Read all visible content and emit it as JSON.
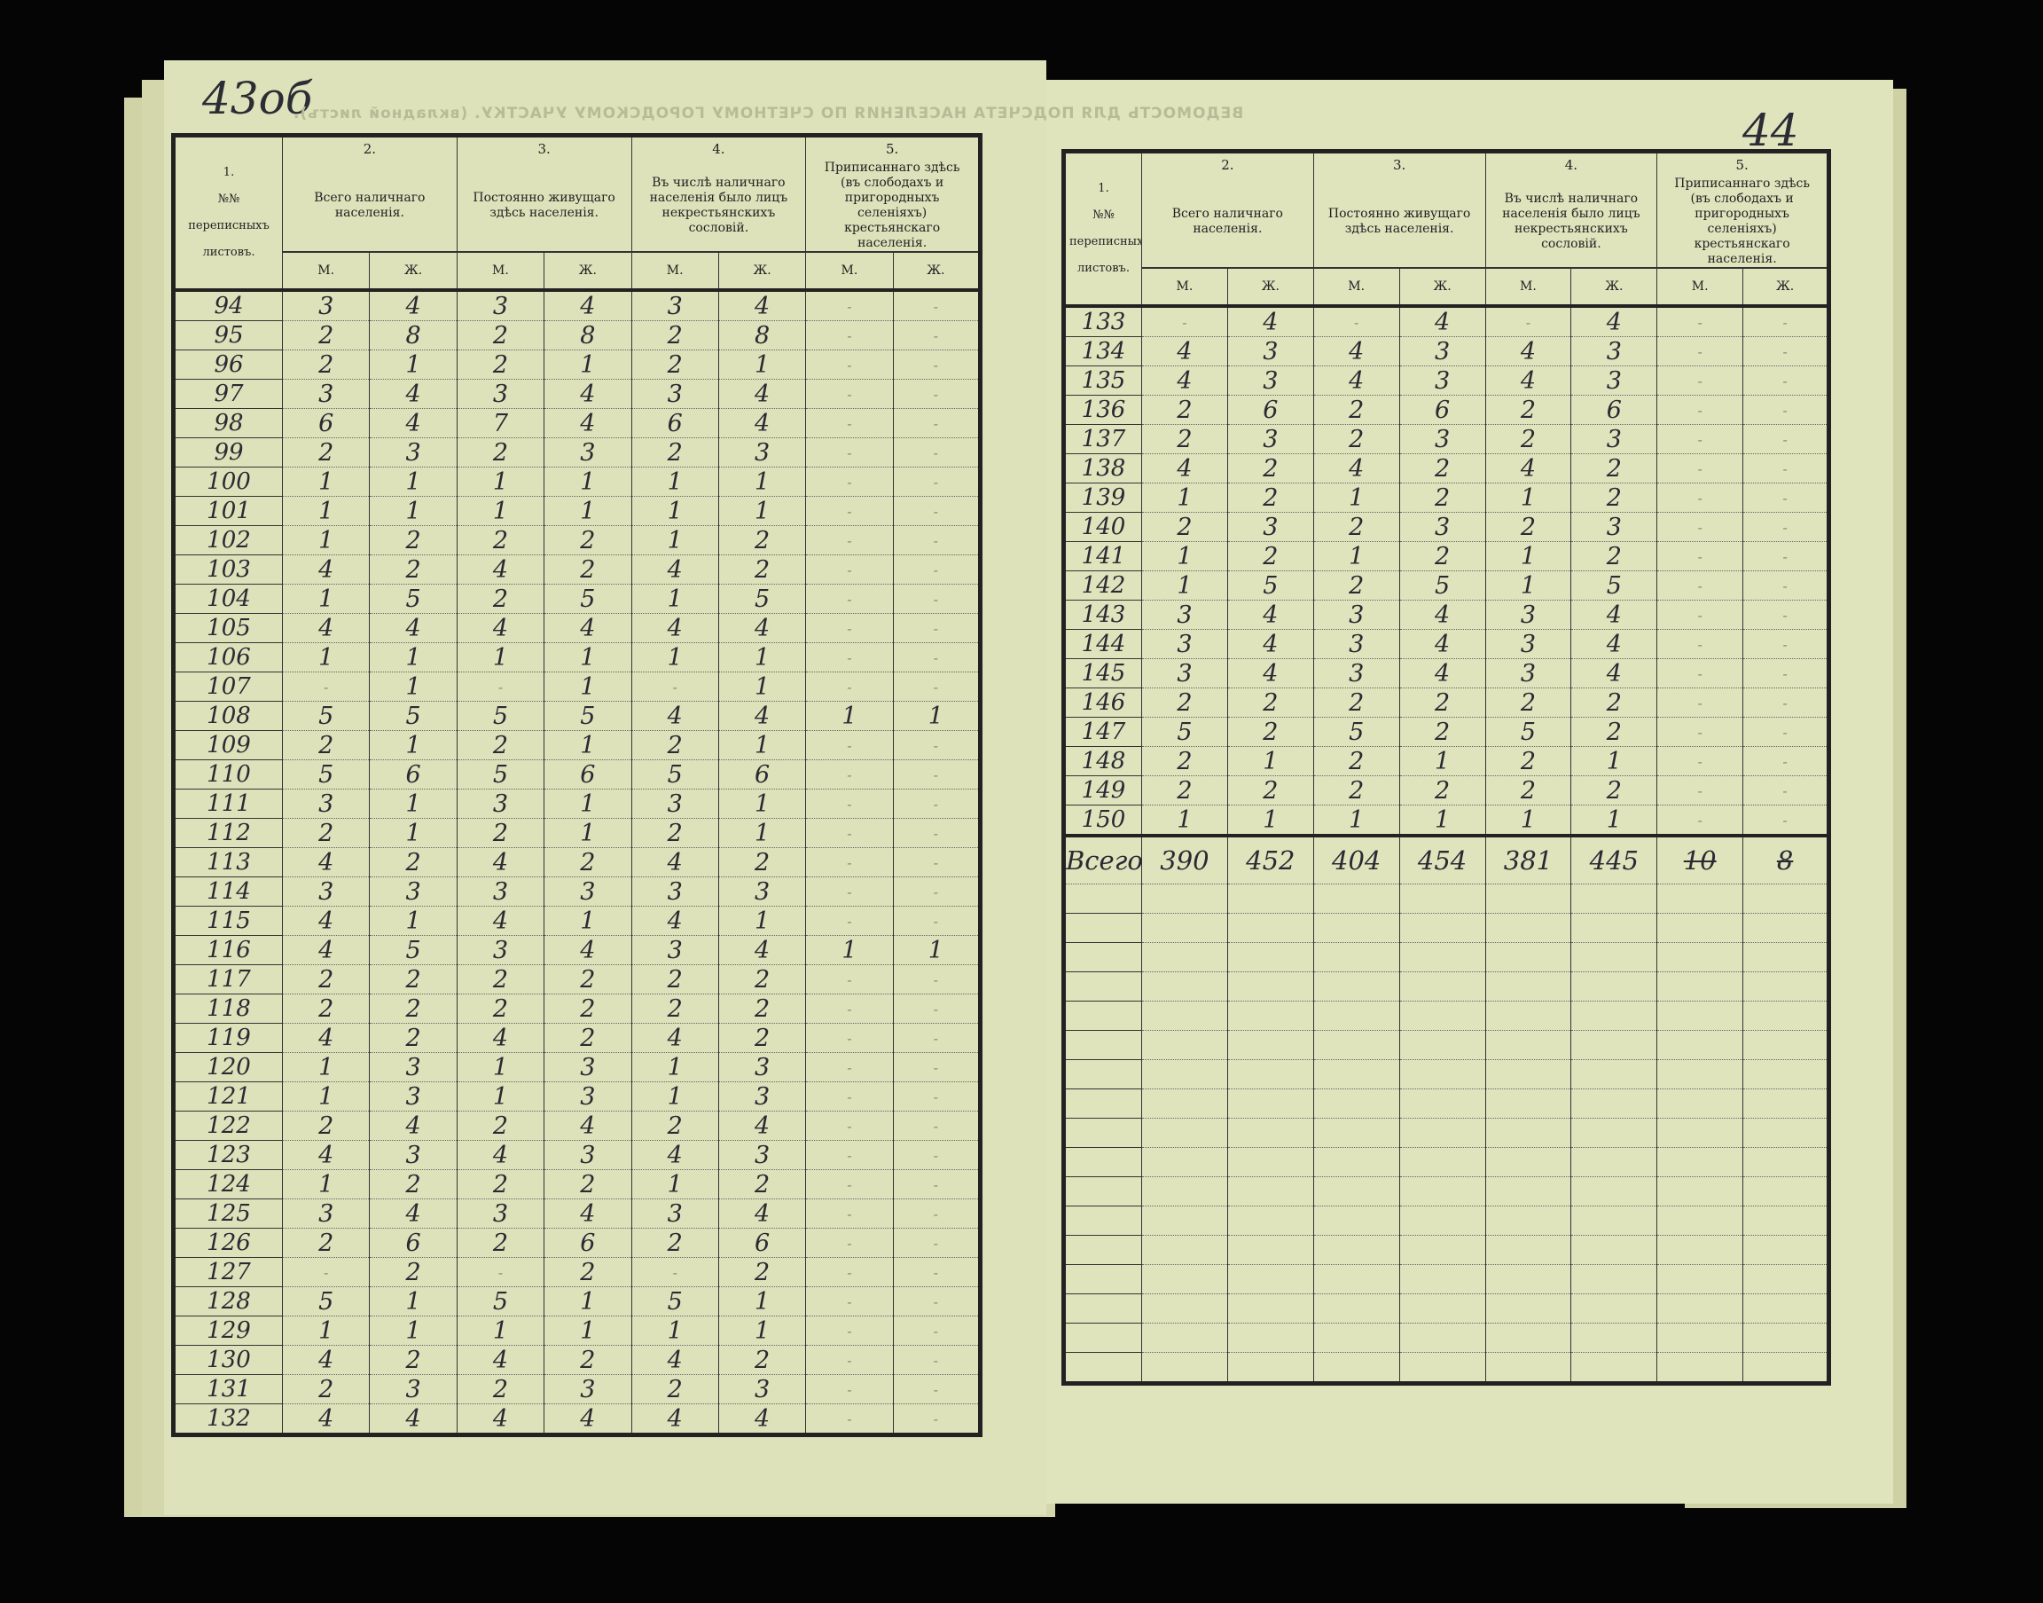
{
  "left_page": {
    "folio": "43об",
    "bleed_through_heading": "ВЕДОМОСТЬ ДЛЯ ПОДСЧЕТА НАСЕЛЕНИЯ ПО СЧЕТНОМУ ГОРОДСКОМУ УЧАСТКУ. (вкладной листъ).",
    "rows": [
      [
        "94",
        "3",
        "4",
        "3",
        "4",
        "3",
        "4",
        "-",
        "-"
      ],
      [
        "95",
        "2",
        "8",
        "2",
        "8",
        "2",
        "8",
        "-",
        "-"
      ],
      [
        "96",
        "2",
        "1",
        "2",
        "1",
        "2",
        "1",
        "-",
        "-"
      ],
      [
        "97",
        "3",
        "4",
        "3",
        "4",
        "3",
        "4",
        "-",
        "-"
      ],
      [
        "98",
        "6",
        "4",
        "7",
        "4",
        "6",
        "4",
        "-",
        "-"
      ],
      [
        "99",
        "2",
        "3",
        "2",
        "3",
        "2",
        "3",
        "-",
        "-"
      ],
      [
        "100",
        "1",
        "1",
        "1",
        "1",
        "1",
        "1",
        "-",
        "-"
      ],
      [
        "101",
        "1",
        "1",
        "1",
        "1",
        "1",
        "1",
        "-",
        "-"
      ],
      [
        "102",
        "1",
        "2",
        "2",
        "2",
        "1",
        "2",
        "-",
        "-"
      ],
      [
        "103",
        "4",
        "2",
        "4",
        "2",
        "4",
        "2",
        "-",
        "-"
      ],
      [
        "104",
        "1",
        "5",
        "2",
        "5",
        "1",
        "5",
        "-",
        "-"
      ],
      [
        "105",
        "4",
        "4",
        "4",
        "4",
        "4",
        "4",
        "-",
        "-"
      ],
      [
        "106",
        "1",
        "1",
        "1",
        "1",
        "1",
        "1",
        "-",
        "-"
      ],
      [
        "107",
        "-",
        "1",
        "-",
        "1",
        "-",
        "1",
        "-",
        "-"
      ],
      [
        "108",
        "5",
        "5",
        "5",
        "5",
        "4",
        "4",
        "1",
        "1"
      ],
      [
        "109",
        "2",
        "1",
        "2",
        "1",
        "2",
        "1",
        "-",
        "-"
      ],
      [
        "110",
        "5",
        "6",
        "5",
        "6",
        "5",
        "6",
        "-",
        "-"
      ],
      [
        "111",
        "3",
        "1",
        "3",
        "1",
        "3",
        "1",
        "-",
        "-"
      ],
      [
        "112",
        "2",
        "1",
        "2",
        "1",
        "2",
        "1",
        "-",
        "-"
      ],
      [
        "113",
        "4",
        "2",
        "4",
        "2",
        "4",
        "2",
        "-",
        "-"
      ],
      [
        "114",
        "3",
        "3",
        "3",
        "3",
        "3",
        "3",
        "-",
        "-"
      ],
      [
        "115",
        "4",
        "1",
        "4",
        "1",
        "4",
        "1",
        "-",
        "-"
      ],
      [
        "116",
        "4",
        "5",
        "3",
        "4",
        "3",
        "4",
        "1",
        "1"
      ],
      [
        "117",
        "2",
        "2",
        "2",
        "2",
        "2",
        "2",
        "-",
        "-"
      ],
      [
        "118",
        "2",
        "2",
        "2",
        "2",
        "2",
        "2",
        "-",
        "-"
      ],
      [
        "119",
        "4",
        "2",
        "4",
        "2",
        "4",
        "2",
        "-",
        "-"
      ],
      [
        "120",
        "1",
        "3",
        "1",
        "3",
        "1",
        "3",
        "-",
        "-"
      ],
      [
        "121",
        "1",
        "3",
        "1",
        "3",
        "1",
        "3",
        "-",
        "-"
      ],
      [
        "122",
        "2",
        "4",
        "2",
        "4",
        "2",
        "4",
        "-",
        "-"
      ],
      [
        "123",
        "4",
        "3",
        "4",
        "3",
        "4",
        "3",
        "-",
        "-"
      ],
      [
        "124",
        "1",
        "2",
        "2",
        "2",
        "1",
        "2",
        "-",
        "-"
      ],
      [
        "125",
        "3",
        "4",
        "3",
        "4",
        "3",
        "4",
        "-",
        "-"
      ],
      [
        "126",
        "2",
        "6",
        "2",
        "6",
        "2",
        "6",
        "-",
        "-"
      ],
      [
        "127",
        "-",
        "2",
        "-",
        "2",
        "-",
        "2",
        "-",
        "-"
      ],
      [
        "128",
        "5",
        "1",
        "5",
        "1",
        "5",
        "1",
        "-",
        "-"
      ],
      [
        "129",
        "1",
        "1",
        "1",
        "1",
        "1",
        "1",
        "-",
        "-"
      ],
      [
        "130",
        "4",
        "2",
        "4",
        "2",
        "4",
        "2",
        "-",
        "-"
      ],
      [
        "131",
        "2",
        "3",
        "2",
        "3",
        "2",
        "3",
        "-",
        "-"
      ],
      [
        "132",
        "4",
        "4",
        "4",
        "4",
        "4",
        "4",
        "-",
        "-"
      ]
    ]
  },
  "right_page": {
    "folio": "44",
    "rows": [
      [
        "133",
        "-",
        "4",
        "-",
        "4",
        "-",
        "4",
        "-",
        "-"
      ],
      [
        "134",
        "4",
        "3",
        "4",
        "3",
        "4",
        "3",
        "-",
        "-"
      ],
      [
        "135",
        "4",
        "3",
        "4",
        "3",
        "4",
        "3",
        "-",
        "-"
      ],
      [
        "136",
        "2",
        "6",
        "2",
        "6",
        "2",
        "6",
        "-",
        "-"
      ],
      [
        "137",
        "2",
        "3",
        "2",
        "3",
        "2",
        "3",
        "-",
        "-"
      ],
      [
        "138",
        "4",
        "2",
        "4",
        "2",
        "4",
        "2",
        "-",
        "-"
      ],
      [
        "139",
        "1",
        "2",
        "1",
        "2",
        "1",
        "2",
        "-",
        "-"
      ],
      [
        "140",
        "2",
        "3",
        "2",
        "3",
        "2",
        "3",
        "-",
        "-"
      ],
      [
        "141",
        "1",
        "2",
        "1",
        "2",
        "1",
        "2",
        "-",
        "-"
      ],
      [
        "142",
        "1",
        "5",
        "2",
        "5",
        "1",
        "5",
        "-",
        "-"
      ],
      [
        "143",
        "3",
        "4",
        "3",
        "4",
        "3",
        "4",
        "-",
        "-"
      ],
      [
        "144",
        "3",
        "4",
        "3",
        "4",
        "3",
        "4",
        "-",
        "-"
      ],
      [
        "145",
        "3",
        "4",
        "3",
        "4",
        "3",
        "4",
        "-",
        "-"
      ],
      [
        "146",
        "2",
        "2",
        "2",
        "2",
        "2",
        "2",
        "-",
        "-"
      ],
      [
        "147",
        "5",
        "2",
        "5",
        "2",
        "5",
        "2",
        "-",
        "-"
      ],
      [
        "148",
        "2",
        "1",
        "2",
        "1",
        "2",
        "1",
        "-",
        "-"
      ],
      [
        "149",
        "2",
        "2",
        "2",
        "2",
        "2",
        "2",
        "-",
        "-"
      ],
      [
        "150",
        "1",
        "1",
        "1",
        "1",
        "1",
        "1",
        "-",
        "-"
      ]
    ],
    "total": [
      "Всего.",
      "390",
      "452",
      "404",
      "454",
      "381",
      "445",
      "10",
      "8"
    ],
    "total_struck": [
      false,
      false,
      false,
      false,
      false,
      false,
      false,
      true,
      true
    ]
  },
  "header": {
    "column_numbers": [
      "1.",
      "2.",
      "3.",
      "4.",
      "5."
    ],
    "col1": "№№ переписныхъ листовъ.",
    "col2": "Всего наличнаго населенія.",
    "col3": "Постоянно живущаго здѣсь населенія.",
    "col4": "Въ числѣ наличнаго населенія было лицъ некрестьянскихъ сословій.",
    "col5": "Приписаннаго здѣсь (въ слободахъ и пригородныхъ селеніяхъ) крестьянскаго населенія.",
    "male": "М.",
    "female": "Ж."
  },
  "colors": {
    "paper": "#dde2ba",
    "ink": "#2a2a33",
    "print": "#222222",
    "background": "#050505"
  }
}
